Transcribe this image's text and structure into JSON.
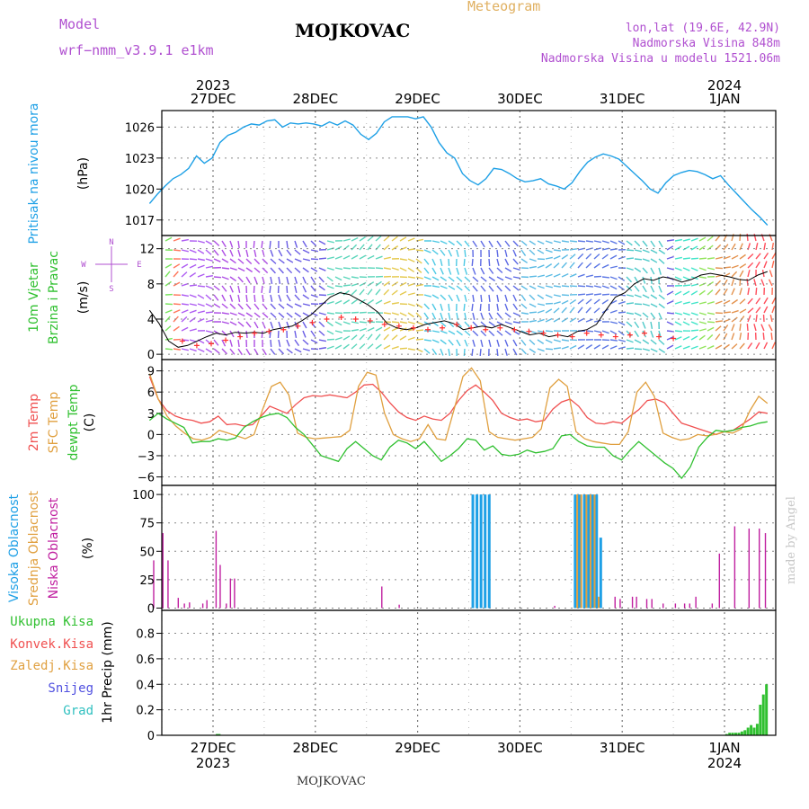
{
  "header": {
    "model_label": "Model",
    "model_name": "wrf−nmm_v3.9.1  e1km",
    "station": "MOJKOVAC",
    "meteogram": "Meteogram",
    "lonlat": "lon,lat (19.6E, 42.9N)",
    "elevation": "Nadmorska Visina 848m",
    "model_elevation": "Nadmorska Visina u modelu 1521.06m"
  },
  "footer": {
    "station": "MOJKOVAC",
    "watermark": "made by Angel"
  },
  "colors": {
    "pressure": "#1ea0e6",
    "temp2m": "#f05050",
    "sfc_temp": "#e0a040",
    "dewpoint": "#30c030",
    "high_cloud": "#1ea0e6",
    "mid_cloud": "#e0a040",
    "low_cloud": "#c020a0",
    "precip": "#30c030",
    "purple": "#b050d0",
    "wind_speed": "#000000",
    "gust": "#ff3030"
  },
  "time_axis": {
    "top_labels": [
      {
        "year": "2023",
        "date": "27DEC"
      },
      {
        "year": "",
        "date": "28DEC"
      },
      {
        "year": "",
        "date": "29DEC"
      },
      {
        "year": "",
        "date": "30DEC"
      },
      {
        "year": "",
        "date": "31DEC"
      },
      {
        "year": "2024",
        "date": "1JAN"
      }
    ],
    "bottom_labels": [
      {
        "date": "27DEC",
        "year": "2023"
      },
      {
        "date": "28DEC",
        "year": ""
      },
      {
        "date": "29DEC",
        "year": ""
      },
      {
        "date": "30DEC",
        "year": ""
      },
      {
        "date": "31DEC",
        "year": ""
      },
      {
        "date": "1JAN",
        "year": "2024"
      }
    ]
  },
  "wind_legend": {
    "n": "N",
    "s": "S",
    "w": "W",
    "e": "E"
  },
  "chart_data": [
    {
      "type": "line",
      "panel": "pressure",
      "ylabel_lines": [
        "Pritisak na nivou mora"
      ],
      "unit": "(hPa)",
      "yticks": [
        1017,
        1020,
        1023,
        1026
      ],
      "ylim": [
        1015.5,
        1027.6
      ],
      "x_start_day": -0.62,
      "x_end_day": 5.42,
      "series": [
        {
          "values": [
            1018.6,
            1019.5,
            1020.3,
            1021.0,
            1021.4,
            1022.0,
            1023.2,
            1022.5,
            1023.0,
            1024.5,
            1025.2,
            1025.5,
            1026.0,
            1026.3,
            1026.2,
            1026.6,
            1026.7,
            1026.0,
            1026.4,
            1026.3,
            1026.4,
            1026.3,
            1026.1,
            1026.5,
            1026.2,
            1026.6,
            1026.2,
            1025.3,
            1024.8,
            1025.4,
            1026.5,
            1027.0,
            1027.0,
            1027.0,
            1026.8,
            1027.0,
            1026.0,
            1024.5,
            1023.5,
            1023.0,
            1021.5,
            1020.8,
            1020.4,
            1021.0,
            1022.0,
            1021.9,
            1021.5,
            1021.0,
            1020.7,
            1020.8,
            1021.0,
            1020.5,
            1020.3,
            1020.0,
            1020.6,
            1021.7,
            1022.6,
            1023.1,
            1023.4,
            1023.2,
            1022.9,
            1022.2,
            1021.5,
            1020.8,
            1020.0,
            1019.6,
            1020.6,
            1021.3,
            1021.6,
            1021.8,
            1021.7,
            1021.4,
            1021.0,
            1021.3,
            1020.4,
            1019.6,
            1018.8,
            1018.0,
            1017.3,
            1016.5
          ]
        }
      ]
    },
    {
      "type": "line",
      "panel": "wind",
      "ylabel_lines": [
        "10m Vjetar",
        "Brzina i Pravac"
      ],
      "unit": "(m/s)",
      "yticks": [
        0,
        4,
        8,
        12
      ],
      "ylim": [
        -0.6,
        13.5
      ],
      "x_start_day": -0.62,
      "x_end_day": 5.42,
      "series": [
        {
          "values": [
            5.0,
            3.5,
            1.5,
            0.8,
            1.0,
            1.5,
            2.0,
            2.4,
            2.2,
            2.5,
            2.4,
            2.5,
            2.4,
            2.8,
            3.0,
            3.2,
            3.8,
            4.5,
            5.5,
            6.5,
            7.0,
            6.8,
            6.2,
            5.6,
            4.8,
            3.5,
            3.0,
            2.8,
            3.0,
            3.4,
            3.6,
            3.8,
            3.5,
            2.8,
            3.0,
            3.2,
            3.0,
            3.4,
            3.0,
            2.6,
            2.2,
            2.4,
            2.0,
            2.2,
            2.0,
            2.6,
            2.8,
            3.4,
            5.0,
            6.5,
            7.0,
            8.0,
            8.6,
            8.4,
            8.8,
            8.6,
            8.2,
            8.5,
            9.0,
            9.2,
            9.0,
            8.8,
            8.5,
            8.4,
            9.0,
            9.4
          ]
        },
        {
          "values": [
            1.5,
            1.0,
            1.2,
            1.6,
            2.0,
            2.4,
            2.6,
            2.8,
            3.2,
            3.6,
            4.0,
            4.2,
            4.0,
            3.8,
            3.4,
            3.2,
            3.0,
            2.8,
            3.0,
            3.4,
            3.0,
            2.8,
            3.0,
            2.8,
            2.6,
            2.4,
            2.2,
            2.0,
            2.4,
            2.2,
            2.0,
            2.2,
            2.4,
            2.0,
            1.8
          ]
        }
      ]
    },
    {
      "type": "line",
      "panel": "temperature",
      "ylabel_lines": [
        "2m Temp",
        "SFC Temp",
        "dewpt Temp"
      ],
      "unit": "(C)",
      "yticks": [
        -6,
        -3,
        0,
        3,
        6,
        9
      ],
      "ylim": [
        -7.2,
        10.6
      ],
      "x_start_day": -0.62,
      "x_end_day": 5.42,
      "series": [
        {
          "name": "2m Temp",
          "values": [
            8.2,
            5.0,
            3.4,
            2.6,
            2.2,
            2.0,
            1.6,
            1.8,
            2.6,
            1.4,
            1.5,
            1.2,
            1.4,
            2.6,
            4.0,
            3.5,
            3.0,
            4.2,
            5.2,
            5.5,
            5.4,
            5.6,
            5.4,
            5.2,
            6.0,
            7.0,
            7.1,
            6.0,
            4.5,
            3.2,
            2.4,
            2.0,
            2.6,
            2.2,
            2.0,
            3.0,
            4.8,
            6.2,
            7.0,
            6.0,
            4.8,
            3.0,
            2.4,
            2.0,
            2.2,
            1.8,
            2.0,
            3.6,
            4.6,
            5.0,
            4.0,
            2.4,
            1.6,
            1.5,
            1.8,
            1.6,
            2.6,
            3.5,
            4.8,
            5.0,
            4.5,
            3.0,
            1.6,
            1.2,
            0.8,
            0.4,
            0.0,
            0.4,
            0.6,
            1.4,
            2.2,
            3.2,
            3.0
          ]
        },
        {
          "name": "SFC Temp",
          "values": [
            8.6,
            5.0,
            2.6,
            1.2,
            0.2,
            -0.6,
            -0.8,
            -0.4,
            0.6,
            0.2,
            -0.2,
            -0.6,
            0.0,
            3.6,
            6.8,
            7.4,
            5.6,
            0.2,
            -0.4,
            -0.6,
            -0.5,
            -0.4,
            -0.3,
            0.6,
            6.8,
            8.8,
            8.4,
            3.0,
            0.0,
            -0.6,
            -1.0,
            -0.6,
            1.4,
            -0.6,
            -0.8,
            3.6,
            8.2,
            9.4,
            7.6,
            0.4,
            -0.4,
            -0.6,
            -0.8,
            -0.6,
            -0.4,
            0.8,
            6.6,
            7.8,
            6.8,
            0.4,
            -0.6,
            -1.0,
            -1.2,
            -1.4,
            -1.4,
            0.4,
            6.0,
            7.4,
            5.4,
            0.2,
            -0.4,
            -0.8,
            -0.6,
            0.0,
            -0.2,
            0.0,
            0.4,
            0.2,
            0.8,
            3.4,
            5.4,
            4.4
          ]
        },
        {
          "name": "dewpt Temp",
          "values": [
            2.0,
            3.0,
            2.2,
            1.6,
            1.0,
            -1.2,
            -1.0,
            -1.0,
            -0.6,
            -0.8,
            -0.5,
            1.0,
            1.8,
            2.4,
            2.8,
            3.0,
            2.4,
            1.0,
            0.0,
            -1.5,
            -3.0,
            -3.4,
            -3.8,
            -2.0,
            -1.0,
            -2.0,
            -3.0,
            -3.6,
            -1.8,
            -0.8,
            -1.2,
            -2.0,
            -1.0,
            -2.4,
            -3.8,
            -3.0,
            -2.0,
            -0.6,
            -0.8,
            -2.2,
            -1.6,
            -2.8,
            -3.0,
            -2.8,
            -2.2,
            -2.6,
            -2.4,
            -2.0,
            -0.2,
            0.0,
            -1.0,
            -1.6,
            -1.8,
            -1.8,
            -3.0,
            -3.6,
            -2.2,
            -1.0,
            -2.0,
            -3.0,
            -4.0,
            -4.8,
            -6.2,
            -4.6,
            -1.8,
            -0.4,
            0.6,
            0.4,
            0.6,
            1.0,
            1.2,
            1.6,
            1.8
          ]
        }
      ]
    },
    {
      "type": "bar",
      "panel": "cloud",
      "ylabel_lines": [
        "Visoka Oblacnost",
        "Srednja Oblacnost",
        "Niska Oblacnost"
      ],
      "unit": "(%)",
      "yticks": [
        0,
        25,
        50,
        75,
        100
      ],
      "ylim": [
        -2,
        108
      ],
      "series": [
        {
          "name": "Visoka Oblacnost",
          "points": [
            [
              2.54,
              100
            ],
            [
              2.58,
              100
            ],
            [
              2.62,
              100
            ],
            [
              2.66,
              100
            ],
            [
              2.7,
              100
            ],
            [
              3.54,
              100
            ],
            [
              3.58,
              100
            ],
            [
              3.63,
              100
            ],
            [
              3.67,
              100
            ],
            [
              3.71,
              100
            ],
            [
              3.75,
              100
            ],
            [
              3.79,
              62
            ]
          ]
        },
        {
          "name": "Srednja Oblacnost",
          "points": [
            [
              3.56,
              100
            ],
            [
              3.6,
              100
            ],
            [
              3.65,
              100
            ],
            [
              3.69,
              100
            ],
            [
              3.73,
              100
            ],
            [
              3.77,
              10
            ]
          ]
        },
        {
          "name": "Niska Oblacnost",
          "points": [
            [
              -0.58,
              42
            ],
            [
              -0.49,
              66
            ],
            [
              -0.44,
              42
            ],
            [
              -0.34,
              9
            ],
            [
              -0.28,
              4
            ],
            [
              -0.23,
              5
            ],
            [
              -0.1,
              4
            ],
            [
              -0.06,
              7
            ],
            [
              0.03,
              68
            ],
            [
              0.07,
              38
            ],
            [
              0.13,
              4
            ],
            [
              0.17,
              26
            ],
            [
              0.21,
              26
            ],
            [
              1.65,
              19
            ],
            [
              1.82,
              3
            ],
            [
              3.34,
              2
            ],
            [
              3.93,
              10
            ],
            [
              3.98,
              8
            ],
            [
              4.1,
              10
            ],
            [
              4.14,
              10
            ],
            [
              4.24,
              8
            ],
            [
              4.29,
              8
            ],
            [
              4.4,
              4
            ],
            [
              4.52,
              4
            ],
            [
              4.61,
              4
            ],
            [
              4.66,
              4
            ],
            [
              4.72,
              10
            ],
            [
              4.88,
              4
            ],
            [
              4.95,
              48
            ],
            [
              5.1,
              72
            ],
            [
              5.24,
              70
            ],
            [
              5.34,
              70
            ],
            [
              5.4,
              66
            ]
          ]
        }
      ]
    },
    {
      "type": "bar",
      "panel": "precip",
      "ylabel_lines": [
        "1hr Precip (mm)"
      ],
      "legend_labels": [
        "Ukupna Kisa",
        "Konvek.Kisa",
        "Zaledj.Kisa",
        "Snijeg",
        "Grad"
      ],
      "yticks": [
        0,
        0.2,
        0.4,
        0.6,
        0.8
      ],
      "ylim": [
        0,
        0.98
      ],
      "series": [
        {
          "name": "Ukupna Kisa",
          "points": [
            [
              0.04,
              0.01
            ],
            [
              0.06,
              0.01
            ],
            [
              5.02,
              0.01
            ],
            [
              5.05,
              0.02
            ],
            [
              5.08,
              0.02
            ],
            [
              5.11,
              0.02
            ],
            [
              5.14,
              0.02
            ],
            [
              5.17,
              0.03
            ],
            [
              5.2,
              0.04
            ],
            [
              5.23,
              0.06
            ],
            [
              5.26,
              0.08
            ],
            [
              5.29,
              0.06
            ],
            [
              5.32,
              0.09
            ],
            [
              5.35,
              0.24
            ],
            [
              5.38,
              0.32
            ],
            [
              5.41,
              0.4
            ]
          ]
        }
      ]
    }
  ]
}
